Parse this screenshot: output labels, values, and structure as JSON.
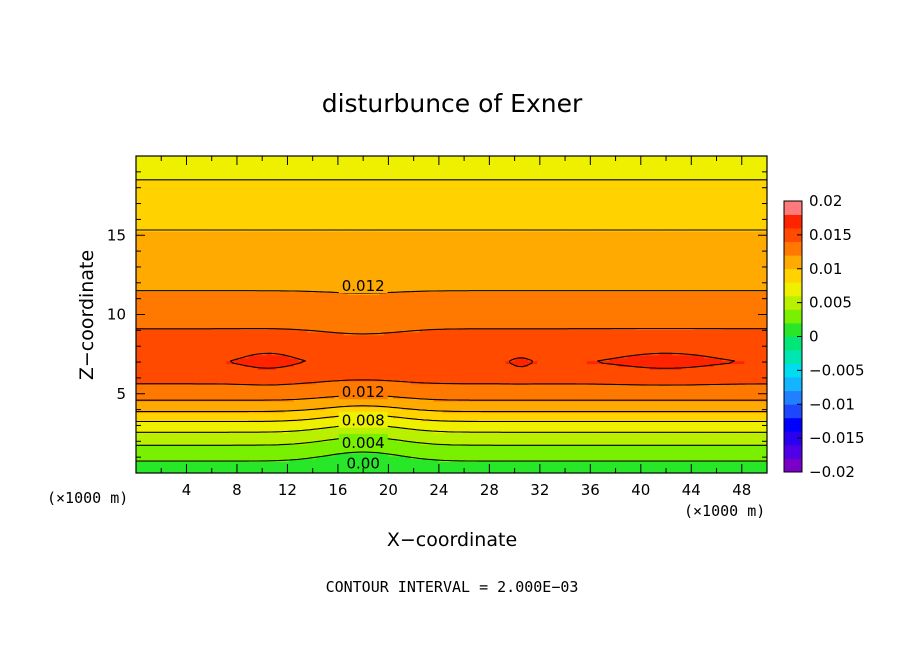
{
  "chart_data": {
    "type": "heatmap",
    "title": "disturbunce of Exner",
    "xlabel": "X−coordinate",
    "ylabel": "Z−coordinate",
    "x_unit_left": "(×1000 m)",
    "x_unit_right": "(×1000 m)",
    "xlim": [
      0,
      50
    ],
    "ylim": [
      0,
      20
    ],
    "x_ticks": [
      "4",
      "8",
      "12",
      "16",
      "20",
      "24",
      "28",
      "32",
      "36",
      "40",
      "44",
      "48"
    ],
    "y_ticks": [
      "5",
      "10",
      "15"
    ],
    "colorbar": {
      "range": [
        -0.02,
        0.02
      ],
      "tick_labels": [
        "0.02",
        "0.015",
        "0.01",
        "0.005",
        "0",
        "−0.005",
        "−0.01",
        "−0.015",
        "−0.02"
      ],
      "levels": [
        -0.02,
        -0.018,
        -0.016,
        -0.014,
        -0.012,
        -0.01,
        -0.008,
        -0.006,
        -0.004,
        -0.002,
        0,
        0.002,
        0.004,
        0.006,
        0.008,
        0.01,
        0.012,
        0.014,
        0.016,
        0.018,
        0.02
      ],
      "colors": [
        "#7a00c8",
        "#5000e6",
        "#2a00f0",
        "#0000ff",
        "#1e46ff",
        "#2080ff",
        "#15b4ff",
        "#00dcf0",
        "#00e6b0",
        "#00e678",
        "#28e628",
        "#78f000",
        "#b8f000",
        "#eef000",
        "#ffd200",
        "#ffaa00",
        "#ff7800",
        "#ff4a00",
        "#ff2400",
        "#ff7a7a"
      ]
    },
    "contour_interval": "CONTOUR INTERVAL = 2.000E−03",
    "contour_labels": [
      {
        "text": "0.012",
        "x": 18,
        "z": 11.8
      },
      {
        "text": "0.012",
        "x": 18,
        "z": 5.1
      },
      {
        "text": "0.008",
        "x": 18,
        "z": 3.3
      },
      {
        "text": "0.004",
        "x": 18,
        "z": 1.9
      },
      {
        "text": "0.00",
        "x": 18,
        "z": 0.6
      }
    ],
    "field_profile": {
      "z": [
        0,
        0.5,
        1.0,
        1.5,
        2.0,
        2.5,
        3.0,
        3.5,
        4.0,
        4.5,
        5.0,
        5.5,
        6.0,
        7.0,
        8.0,
        9.0,
        10.0,
        11.0,
        12.0,
        13.0,
        14.0,
        15.0,
        16.0,
        17.0,
        18.0,
        19.0,
        20.0
      ],
      "value": [
        0.0005,
        0.0015,
        0.0025,
        0.0035,
        0.0045,
        0.0058,
        0.0072,
        0.0088,
        0.0104,
        0.0118,
        0.0129,
        0.0138,
        0.0146,
        0.0159,
        0.0151,
        0.0141,
        0.0131,
        0.0123,
        0.0117,
        0.0112,
        0.0107,
        0.0102,
        0.0096,
        0.0088,
        0.0082,
        0.0078,
        0.0076
      ]
    }
  }
}
